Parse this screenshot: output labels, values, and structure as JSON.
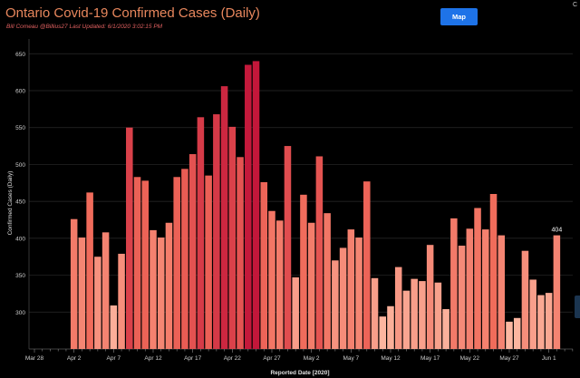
{
  "header": {
    "title": "Ontario Covid-19 Confirmed Cases (Daily)",
    "subtitle": "Bill Comeau @Billius27   Last Updated: 6/1/2020 3:02:15 PM",
    "map_button": "Map",
    "corner_mark": "C"
  },
  "chart_data": {
    "type": "bar",
    "title": "Ontario Covid-19 Confirmed Cases (Daily)",
    "xlabel": "Reported Date [2020]",
    "ylabel": "Confirmed Cases (Daily)",
    "ylim": [
      250,
      670
    ],
    "y_ticks": [
      300,
      350,
      400,
      450,
      500,
      550,
      600,
      650
    ],
    "x_ticks": [
      "Mar 28",
      "Apr 2",
      "Apr 7",
      "Apr 12",
      "Apr 17",
      "Apr 22",
      "Apr 27",
      "May 2",
      "May 7",
      "May 12",
      "May 17",
      "May 22",
      "May 27",
      "Jun 1",
      "Jun 6"
    ],
    "categories": [
      "Apr 1",
      "Apr 2",
      "Apr 3",
      "Apr 4",
      "Apr 5",
      "Apr 6",
      "Apr 7",
      "Apr 8",
      "Apr 9",
      "Apr 10",
      "Apr 11",
      "Apr 12",
      "Apr 13",
      "Apr 14",
      "Apr 15",
      "Apr 16",
      "Apr 17",
      "Apr 18",
      "Apr 19",
      "Apr 20",
      "Apr 21",
      "Apr 22",
      "Apr 23",
      "Apr 24",
      "Apr 25",
      "Apr 26",
      "Apr 27",
      "Apr 28",
      "Apr 29",
      "Apr 30",
      "May 1",
      "May 2",
      "May 3",
      "May 4",
      "May 5",
      "May 6",
      "May 7",
      "May 8",
      "May 9",
      "May 10",
      "May 11",
      "May 12",
      "May 13",
      "May 14",
      "May 15",
      "May 16",
      "May 17",
      "May 18",
      "May 19",
      "May 20",
      "May 21",
      "May 22",
      "May 23",
      "May 24",
      "May 25",
      "May 26",
      "May 27",
      "May 28",
      "May 29",
      "May 30",
      "May 31",
      "Jun 1"
    ],
    "values": [
      426,
      401,
      462,
      375,
      408,
      309,
      379,
      550,
      483,
      478,
      411,
      401,
      421,
      483,
      494,
      514,
      564,
      485,
      568,
      606,
      551,
      510,
      635,
      640,
      476,
      437,
      424,
      525,
      347,
      459,
      421,
      511,
      434,
      370,
      387,
      412,
      401,
      477,
      346,
      294,
      308,
      361,
      329,
      345,
      342,
      391,
      340,
      304,
      427,
      390,
      413,
      441,
      412,
      460,
      404,
      287,
      292,
      383,
      344,
      323,
      326,
      404
    ],
    "data_labels": [
      {
        "category": "Jun 1",
        "text": "404"
      }
    ],
    "color_scale": {
      "low": "#fcb8a2",
      "mid": "#f06a5a",
      "high": "#c3173a"
    },
    "grid": true,
    "legend": "none"
  }
}
